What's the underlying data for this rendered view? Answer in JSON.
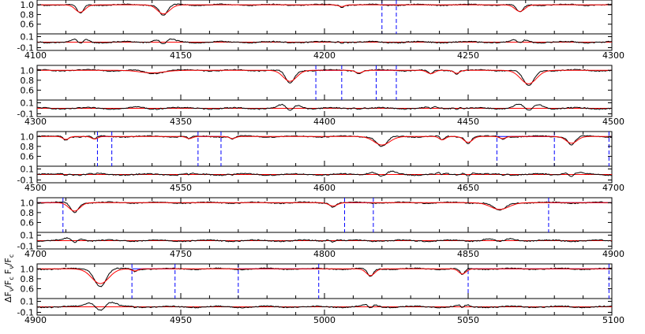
{
  "figure": {
    "ylabel_top_parts": [
      "ΔF",
      "ν",
      "/F",
      "c"
    ],
    "ylabel_bottom_parts": [
      "F",
      "ν",
      "/F",
      "c"
    ]
  },
  "colors": {
    "observed": "#000000",
    "model": "#ff0000",
    "continuum_window": "#0000ff"
  },
  "chart_data": [
    {
      "type": "line",
      "panel": 1,
      "xlim": [
        4100,
        4300
      ],
      "x_ticks": [
        4100,
        4150,
        4200,
        4250,
        4300
      ],
      "top_ylim": [
        0.4,
        1.1
      ],
      "top_yticks": [
        "1.0",
        "0.8",
        "0.6"
      ],
      "bottom_ylim": [
        -0.15,
        0.15
      ],
      "bottom_yticks": [
        "0.1",
        "-0.1"
      ],
      "lines": [
        {
          "center": 4115,
          "depth": 0.18,
          "width": 1.6
        },
        {
          "center": 4144,
          "depth": 0.22,
          "width": 2.0
        },
        {
          "center": 4206,
          "depth": 0.04,
          "width": 1.0
        },
        {
          "center": 4268,
          "depth": 0.16,
          "width": 1.6
        }
      ],
      "windows": [
        [
          4220,
          4225
        ]
      ],
      "series": [
        {
          "name": "",
          "values": []
        },
        {
          "name": "",
          "values": []
        }
      ]
    },
    {
      "type": "line",
      "panel": 2,
      "xlim": [
        4300,
        4500
      ],
      "x_ticks": [
        4300,
        4350,
        4400,
        4450,
        4500
      ],
      "top_ylim": [
        0.4,
        1.1
      ],
      "top_yticks": [
        "1.0",
        "0.8",
        "0.6"
      ],
      "bottom_ylim": [
        -0.15,
        0.15
      ],
      "bottom_yticks": [
        "0.1",
        "-0.1"
      ],
      "lines": [
        {
          "center": 4340,
          "depth": 0.06,
          "width": 4.0
        },
        {
          "center": 4388,
          "depth": 0.26,
          "width": 2.2
        },
        {
          "center": 4412,
          "depth": 0.06,
          "width": 1.2
        },
        {
          "center": 4437,
          "depth": 0.08,
          "width": 1.2
        },
        {
          "center": 4446,
          "depth": 0.07,
          "width": 1.0
        },
        {
          "center": 4471,
          "depth": 0.32,
          "width": 2.6
        }
      ],
      "windows": [
        [
          4397,
          4406
        ],
        [
          4418,
          4425
        ]
      ],
      "series": [
        {
          "name": "",
          "values": []
        },
        {
          "name": "",
          "values": []
        }
      ]
    },
    {
      "type": "line",
      "panel": 3,
      "xlim": [
        4500,
        4700
      ],
      "x_ticks": [
        4500,
        4550,
        4600,
        4650,
        4700
      ],
      "top_ylim": [
        0.4,
        1.1
      ],
      "top_yticks": [
        "1.0",
        "0.8",
        "0.6"
      ],
      "bottom_ylim": [
        -0.15,
        0.15
      ],
      "bottom_yticks": [
        "0.1",
        "-0.1"
      ],
      "lines": [
        {
          "center": 4510,
          "depth": 0.07,
          "width": 1.0
        },
        {
          "center": 4520,
          "depth": 0.06,
          "width": 1.0
        },
        {
          "center": 4553,
          "depth": 0.05,
          "width": 1.0
        },
        {
          "center": 4568,
          "depth": 0.05,
          "width": 1.0
        },
        {
          "center": 4620,
          "depth": 0.2,
          "width": 2.6
        },
        {
          "center": 4641,
          "depth": 0.08,
          "width": 1.0
        },
        {
          "center": 4650,
          "depth": 0.14,
          "width": 1.4
        },
        {
          "center": 4662,
          "depth": 0.05,
          "width": 1.0
        },
        {
          "center": 4686,
          "depth": 0.16,
          "width": 1.8
        }
      ],
      "windows": [
        [
          4521,
          4526
        ],
        [
          4556,
          4564
        ],
        [
          4660,
          4680
        ],
        [
          4699,
          4700
        ]
      ],
      "series": [
        {
          "name": "",
          "values": []
        },
        {
          "name": "",
          "values": []
        }
      ]
    },
    {
      "type": "line",
      "panel": 4,
      "xlim": [
        4700,
        4900
      ],
      "x_ticks": [
        4700,
        4750,
        4800,
        4850,
        4900
      ],
      "top_ylim": [
        0.4,
        1.1
      ],
      "top_yticks": [
        "1.0",
        "0.8",
        "0.6"
      ],
      "bottom_ylim": [
        -0.15,
        0.15
      ],
      "bottom_yticks": [
        "0.1",
        "-0.1"
      ],
      "lines": [
        {
          "center": 4713,
          "depth": 0.2,
          "width": 1.8
        },
        {
          "center": 4803,
          "depth": 0.08,
          "width": 1.4
        },
        {
          "center": 4861,
          "depth": 0.16,
          "width": 3.0
        }
      ],
      "windows": [
        [
          4700,
          4709
        ],
        [
          4807,
          4817
        ],
        [
          4878,
          4900
        ]
      ],
      "series": [
        {
          "name": "",
          "values": []
        },
        {
          "name": "",
          "values": []
        }
      ]
    },
    {
      "type": "line",
      "panel": 5,
      "xlim": [
        4900,
        5100
      ],
      "x_ticks": [
        4900,
        4950,
        5000,
        5050,
        5100
      ],
      "top_ylim": [
        0.4,
        1.1
      ],
      "top_yticks": [
        "1.0",
        "0.8",
        "0.6"
      ],
      "bottom_ylim": [
        -0.15,
        0.15
      ],
      "bottom_yticks": [
        "0.1",
        "-0.1"
      ],
      "lines": [
        {
          "center": 4922,
          "depth": 0.35,
          "width": 2.8
        },
        {
          "center": 4934,
          "depth": 0.05,
          "width": 1.0
        },
        {
          "center": 5016,
          "depth": 0.16,
          "width": 1.4
        },
        {
          "center": 5048,
          "depth": 0.12,
          "width": 1.2
        }
      ],
      "windows": [
        [
          4933,
          4948
        ],
        [
          4970,
          4998
        ],
        [
          5050,
          5099
        ]
      ],
      "series": [
        {
          "name": "",
          "values": []
        },
        {
          "name": "",
          "values": []
        }
      ]
    }
  ]
}
